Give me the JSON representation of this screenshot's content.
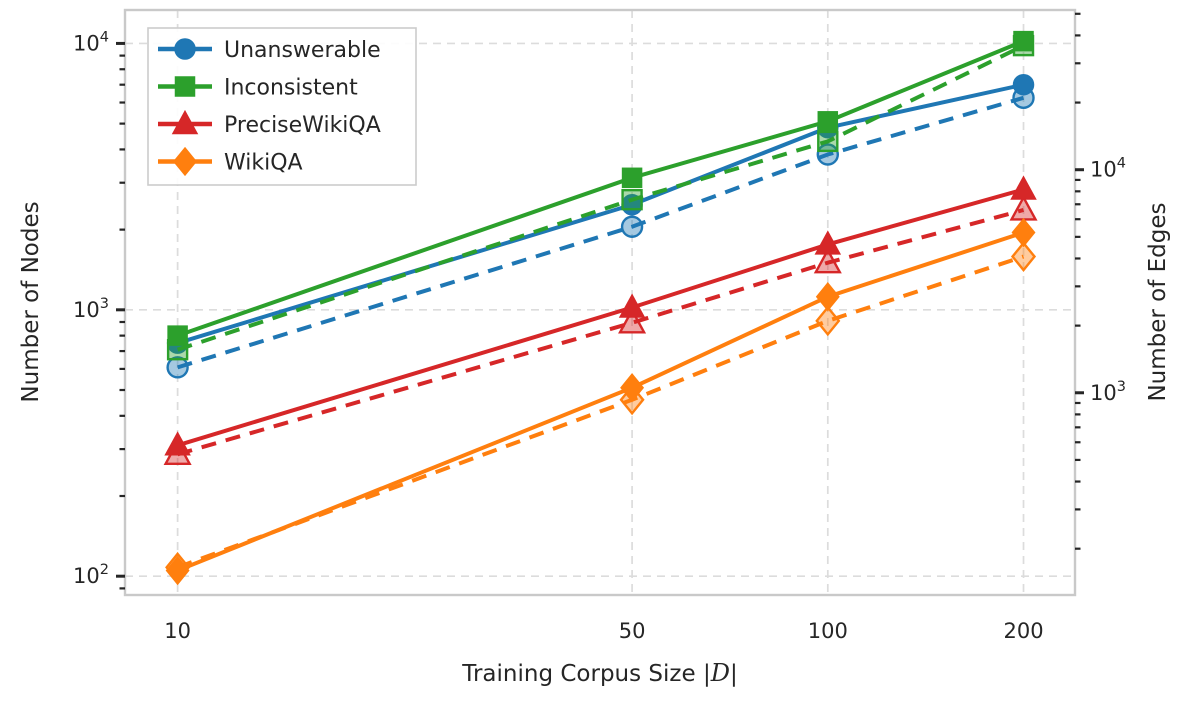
{
  "figure": {
    "background": "#ffffff",
    "text_color": "#262626",
    "spine_color": "#c9c9c9",
    "grid_color": "#dcdcdc"
  },
  "chart_data": {
    "type": "line",
    "title": "",
    "xlabel_parts": {
      "prefix": "Training Corpus Size |",
      "symbol": "D",
      "suffix": "|"
    },
    "x_axis": {
      "scale": "log",
      "range": [
        8.3,
        240
      ],
      "ticks": [
        {
          "value": 10,
          "label": "10"
        },
        {
          "value": 50,
          "label": "50"
        },
        {
          "value": 100,
          "label": "100"
        },
        {
          "value": 200,
          "label": "200"
        }
      ]
    },
    "left_axis": {
      "label": "Number of Nodes",
      "scale": "log",
      "range": [
        85,
        13350
      ],
      "major_ticks": [
        {
          "value": 10000,
          "base": "10",
          "exp": "4"
        },
        {
          "value": 1000,
          "base": "10",
          "exp": "3"
        },
        {
          "value": 100,
          "base": "10",
          "exp": "2"
        }
      ]
    },
    "right_axis": {
      "label": "Number of Edges",
      "scale": "log",
      "range": [
        124,
        52000
      ],
      "major_ticks": [
        {
          "value": 10000,
          "base": "10",
          "exp": "4"
        },
        {
          "value": 1000,
          "base": "10",
          "exp": "3"
        }
      ]
    },
    "x": [
      10,
      50,
      100,
      200
    ],
    "series": [
      {
        "name": "Unanswerable",
        "color": "#1f77b4",
        "marker": "circle",
        "nodes": [
          750,
          2480,
          4830,
          7000
        ],
        "edges": [
          1300,
          5550,
          11700,
          21000
        ]
      },
      {
        "name": "Inconsistent",
        "color": "#2ca02c",
        "marker": "square",
        "nodes": [
          800,
          3130,
          5100,
          10200
        ],
        "edges": [
          1560,
          7340,
          13400,
          36000
        ]
      },
      {
        "name": "PreciseWikiQA",
        "color": "#d62728",
        "marker": "triangle",
        "nodes": [
          310,
          1020,
          1760,
          2830
        ],
        "edges": [
          530,
          2060,
          3830,
          6600
        ]
      },
      {
        "name": "WikiQA",
        "color": "#ff7f0e",
        "marker": "diamond",
        "nodes": [
          105,
          510,
          1120,
          1950
        ],
        "edges": [
          165,
          930,
          2100,
          4080
        ]
      }
    ],
    "styles": {
      "nodes_line": "solid",
      "edges_line": "dashed"
    },
    "legend": {
      "position": "upper left",
      "entries": [
        "Unanswerable",
        "Inconsistent",
        "PreciseWikiQA",
        "WikiQA"
      ]
    },
    "grid": true
  }
}
